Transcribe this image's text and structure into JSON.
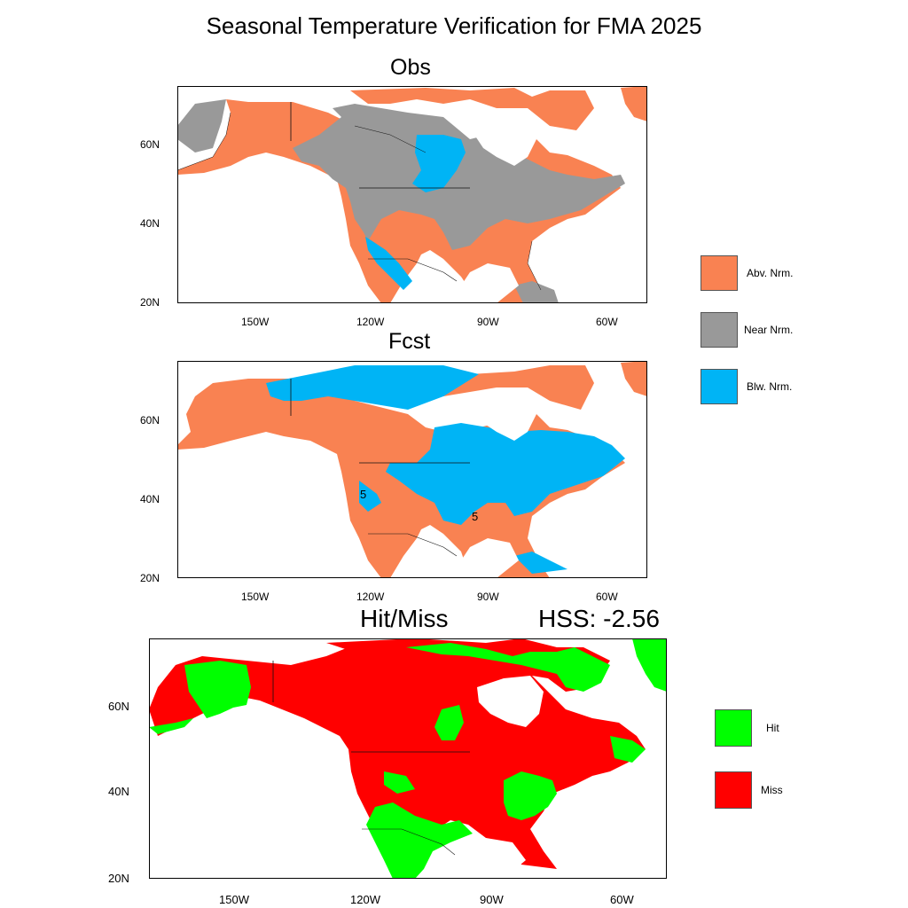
{
  "title": "Seasonal Temperature Verification for FMA 2025",
  "panels": {
    "obs": {
      "title": "Obs"
    },
    "fcst": {
      "title": "Fcst"
    },
    "hitmiss": {
      "title": "Hit/Miss",
      "score": "HSS: -2.56"
    }
  },
  "axes": {
    "lat_ticks": [
      "20N",
      "40N",
      "60N"
    ],
    "lon_ticks": [
      "150W",
      "120W",
      "90W",
      "60W"
    ]
  },
  "contour_label": "5",
  "legend_temp": [
    {
      "label": "Abv. Nrm.",
      "color": "#F98252"
    },
    {
      "label": "Near Nrm.",
      "color": "#999999"
    },
    {
      "label": "Blw. Nrm.",
      "color": "#00B4F5"
    }
  ],
  "legend_hit": [
    {
      "label": "Hit",
      "color": "#00FF00"
    },
    {
      "label": "Miss",
      "color": "#FF0000"
    }
  ],
  "colors": {
    "land_outline": "#111111",
    "background": "#FFFFFF"
  }
}
